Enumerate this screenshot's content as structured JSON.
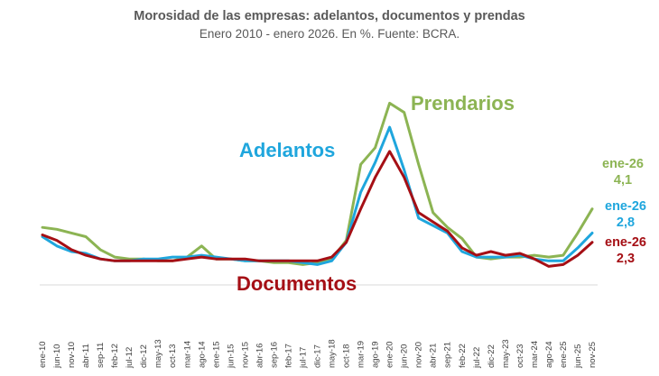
{
  "title": "Morosidad de las empresas: adelantos, documentos y prendas",
  "subtitle": "Enero 2010 - enero 2026. En %. Fuente: BCRA.",
  "chart_data": {
    "type": "line",
    "title": "Morosidad de las empresas: adelantos, documentos y prendas",
    "subtitle": "Enero 2010 - enero 2026. En %. Fuente: BCRA.",
    "xlabel": "",
    "ylabel": "",
    "ylim": [
      0,
      10.5
    ],
    "grid": false,
    "legend": "inline labels",
    "categories": [
      "ene-10",
      "jun-10",
      "nov-10",
      "abr-11",
      "sep-11",
      "feb-12",
      "jul-12",
      "dic-12",
      "may-13",
      "oct-13",
      "mar-14",
      "ago-14",
      "ene-15",
      "jun-15",
      "nov-15",
      "abr-16",
      "sep-16",
      "feb-17",
      "jul-17",
      "dic-17",
      "may-18",
      "oct-18",
      "mar-19",
      "ago-19",
      "ene-20",
      "jun-20",
      "nov-20",
      "abr-21",
      "sep-21",
      "feb-22",
      "jul-22",
      "dic-22",
      "may-23",
      "oct-23",
      "mar-24",
      "ago-24",
      "ene-25",
      "jun-25",
      "nov-25"
    ],
    "series": [
      {
        "name": "Prendarios",
        "color": "#8CB453",
        "values": [
          3.1,
          3.0,
          2.8,
          2.6,
          1.9,
          1.5,
          1.4,
          1.4,
          1.3,
          1.3,
          1.5,
          2.1,
          1.4,
          1.4,
          1.3,
          1.3,
          1.2,
          1.2,
          1.1,
          1.2,
          1.4,
          2.4,
          6.5,
          7.4,
          9.8,
          9.3,
          6.5,
          3.9,
          3.1,
          2.5,
          1.5,
          1.4,
          1.5,
          1.5,
          1.6,
          1.5,
          1.6,
          2.8,
          4.1
        ],
        "end_label": "ene-26",
        "end_value": "4,1"
      },
      {
        "name": "Adelantos",
        "color": "#1FA6DD",
        "values": [
          2.6,
          2.1,
          1.8,
          1.7,
          1.4,
          1.3,
          1.3,
          1.4,
          1.4,
          1.5,
          1.5,
          1.6,
          1.5,
          1.4,
          1.3,
          1.3,
          1.3,
          1.3,
          1.2,
          1.1,
          1.3,
          2.3,
          5.0,
          6.6,
          8.5,
          6.2,
          3.6,
          3.2,
          2.8,
          1.8,
          1.5,
          1.5,
          1.5,
          1.6,
          1.4,
          1.3,
          1.3,
          2.0,
          2.8
        ],
        "end_label": "ene-26",
        "end_value": "2,8"
      },
      {
        "name": "Documentos",
        "color": "#A50F15",
        "values": [
          2.7,
          2.4,
          1.9,
          1.6,
          1.4,
          1.3,
          1.3,
          1.3,
          1.3,
          1.3,
          1.4,
          1.5,
          1.4,
          1.4,
          1.4,
          1.3,
          1.3,
          1.3,
          1.3,
          1.3,
          1.5,
          2.3,
          4.1,
          5.8,
          7.2,
          5.8,
          3.9,
          3.4,
          2.9,
          2.0,
          1.6,
          1.8,
          1.6,
          1.7,
          1.4,
          1.0,
          1.1,
          1.6,
          2.3
        ],
        "end_label": "ene-26",
        "end_value": "2,3"
      }
    ]
  }
}
